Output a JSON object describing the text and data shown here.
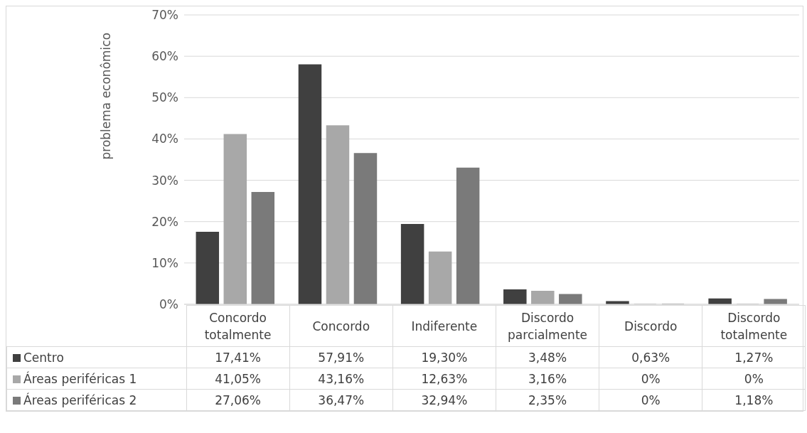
{
  "chart_data": {
    "type": "bar",
    "ylabel": "problema econômico",
    "categories": [
      "Concordo totalmente",
      "Concordo",
      "Indiferente",
      "Discordo parcialmente",
      "Discordo",
      "Discordo totalmente"
    ],
    "series": [
      {
        "name": "Centro",
        "color": "#404040",
        "values": [
          17.41,
          57.91,
          19.3,
          3.48,
          0.63,
          1.27
        ],
        "value_labels": [
          "17,41%",
          "57,91%",
          "19,30%",
          "3,48%",
          "0,63%",
          "1,27%"
        ]
      },
      {
        "name": "Áreas periféricas 1",
        "color": "#a8a8a8",
        "values": [
          41.05,
          43.16,
          12.63,
          3.16,
          0,
          0
        ],
        "value_labels": [
          "41,05%",
          "43,16%",
          "12,63%",
          "3,16%",
          "0%",
          "0%"
        ]
      },
      {
        "name": "Áreas periféricas 2",
        "color": "#7a7a7a",
        "values": [
          27.06,
          36.47,
          32.94,
          2.35,
          0,
          1.18
        ],
        "value_labels": [
          "27,06%",
          "36,47%",
          "32,94%",
          "2,35%",
          "0%",
          "1,18%"
        ]
      }
    ],
    "ylim": [
      0,
      70
    ],
    "yticks": [
      {
        "value": 0,
        "label": "0%"
      },
      {
        "value": 10,
        "label": "10%"
      },
      {
        "value": 20,
        "label": "20%"
      },
      {
        "value": 30,
        "label": "30%"
      },
      {
        "value": 40,
        "label": "40%"
      },
      {
        "value": 50,
        "label": "50%"
      },
      {
        "value": 60,
        "label": "60%"
      },
      {
        "value": 70,
        "label": "70%"
      }
    ],
    "grid": "y",
    "legend": "bottom left"
  }
}
